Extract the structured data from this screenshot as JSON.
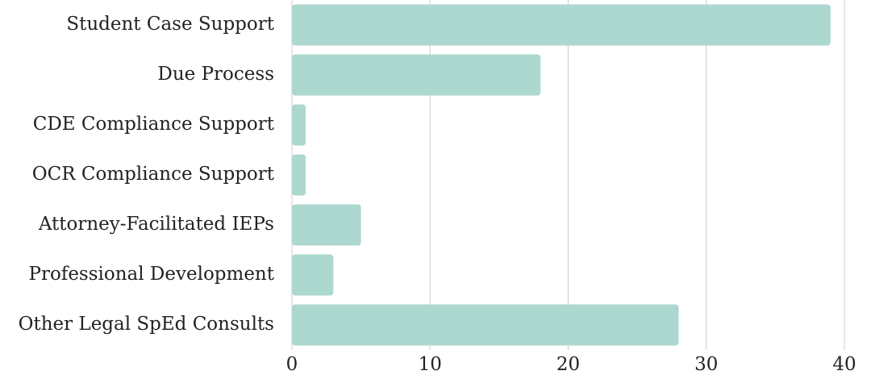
{
  "chart_data": {
    "type": "barh",
    "categories": [
      "Student Case Support",
      "Due Process",
      "CDE Compliance Support",
      "OCR Compliance Support",
      "Attorney-Facilitated IEPs",
      "Professional Development",
      "Other Legal SpEd Consults"
    ],
    "values": [
      39,
      18,
      1,
      1,
      5,
      3,
      28
    ],
    "color": "#acd8cf",
    "xlim": [
      0,
      40
    ],
    "xticks": [
      0,
      10,
      20,
      30,
      40
    ],
    "grid": true
  }
}
